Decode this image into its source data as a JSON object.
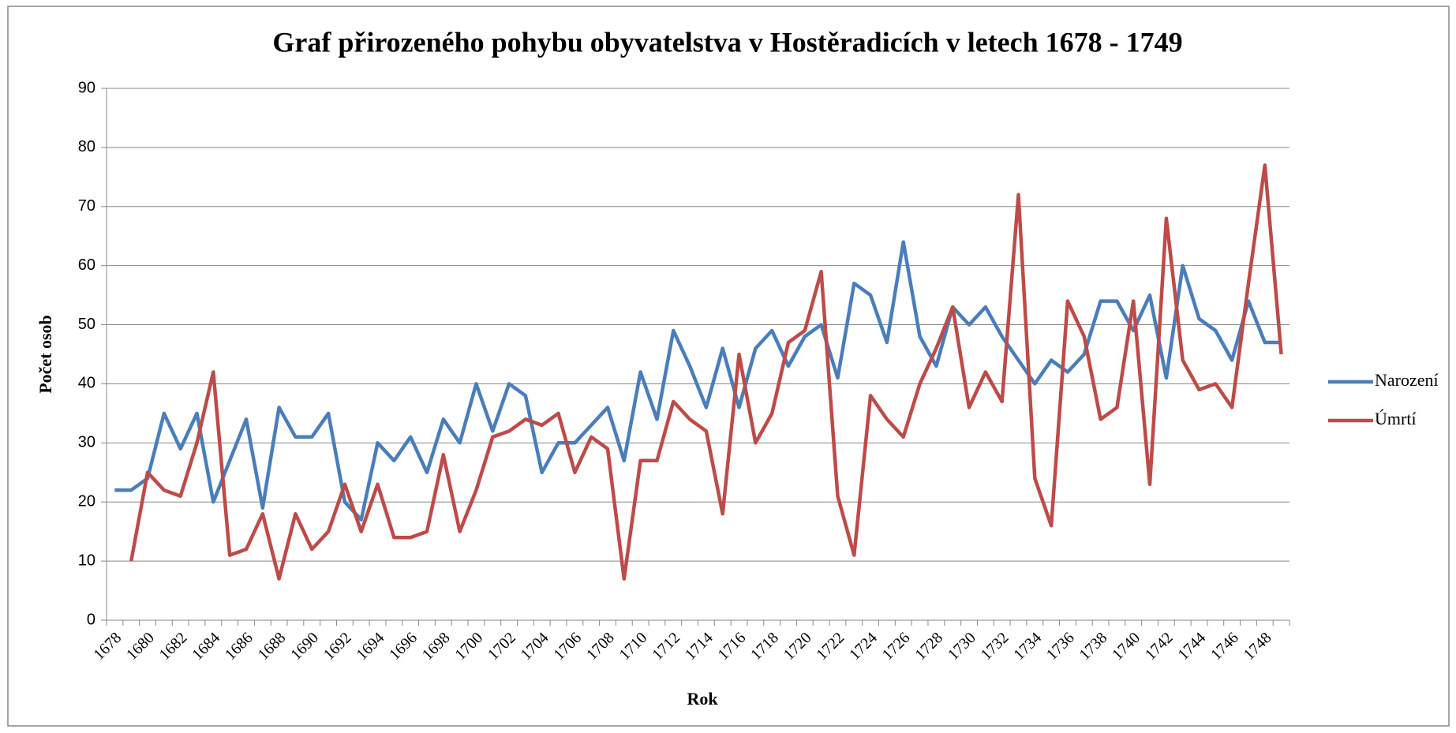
{
  "chart_data": {
    "type": "line",
    "title": "Graf přirozeného pohybu obyvatelstva v Hostěradicích v letech 1678 - 1749",
    "x_label": "Rok",
    "y_label": "Počet osob",
    "categories": [
      "1678",
      null,
      "1680",
      null,
      "1682",
      null,
      "1684",
      null,
      "1686",
      null,
      "1688",
      null,
      "1690",
      null,
      "1692",
      null,
      "1694",
      null,
      "1696",
      null,
      "1698",
      null,
      "1700",
      null,
      "1702",
      null,
      "1704",
      null,
      "1706",
      null,
      "1708",
      null,
      "1710",
      null,
      "1712",
      null,
      "1714",
      null,
      "1716",
      null,
      "1718",
      null,
      "1720",
      null,
      "1722",
      null,
      "1724",
      null,
      "1726",
      null,
      "1728",
      null,
      "1730",
      null,
      "1732",
      null,
      "1734",
      null,
      "1736",
      null,
      "1738",
      null,
      "1740",
      null,
      "1742",
      null,
      "1744",
      null,
      "1746",
      null,
      "1748",
      null
    ],
    "series": [
      {
        "name": "Narození",
        "color": "#4a7ebb",
        "values": [
          22,
          22,
          24,
          35,
          29,
          35,
          20,
          27,
          34,
          19,
          36,
          31,
          31,
          35,
          20,
          17,
          30,
          27,
          31,
          25,
          34,
          30,
          40,
          32,
          40,
          38,
          25,
          30,
          30,
          33,
          36,
          27,
          42,
          34,
          49,
          43,
          36,
          46,
          36,
          46,
          49,
          43,
          48,
          50,
          41,
          57,
          55,
          47,
          64,
          48,
          43,
          53,
          50,
          53,
          48,
          44,
          40,
          44,
          42,
          45,
          54,
          54,
          49,
          55,
          41,
          60,
          51,
          49,
          44,
          54,
          47,
          47
        ]
      },
      {
        "name": "Úmrtí",
        "color": "#be4b48",
        "values": [
          null,
          10,
          25,
          22,
          21,
          30,
          42,
          11,
          12,
          18,
          7,
          18,
          12,
          15,
          23,
          15,
          23,
          14,
          14,
          15,
          28,
          15,
          22,
          31,
          32,
          34,
          33,
          35,
          25,
          31,
          29,
          7,
          27,
          27,
          37,
          34,
          32,
          18,
          45,
          30,
          35,
          47,
          49,
          59,
          21,
          11,
          38,
          34,
          31,
          40,
          46,
          53,
          36,
          42,
          37,
          72,
          24,
          16,
          54,
          48,
          34,
          36,
          54,
          23,
          68,
          44,
          39,
          40,
          36,
          57,
          77,
          45
        ]
      }
    ],
    "ylim": [
      0,
      90
    ],
    "yticks": [
      0,
      10,
      20,
      30,
      40,
      50,
      60,
      70,
      80,
      90
    ],
    "grid": true,
    "legend": "right"
  }
}
